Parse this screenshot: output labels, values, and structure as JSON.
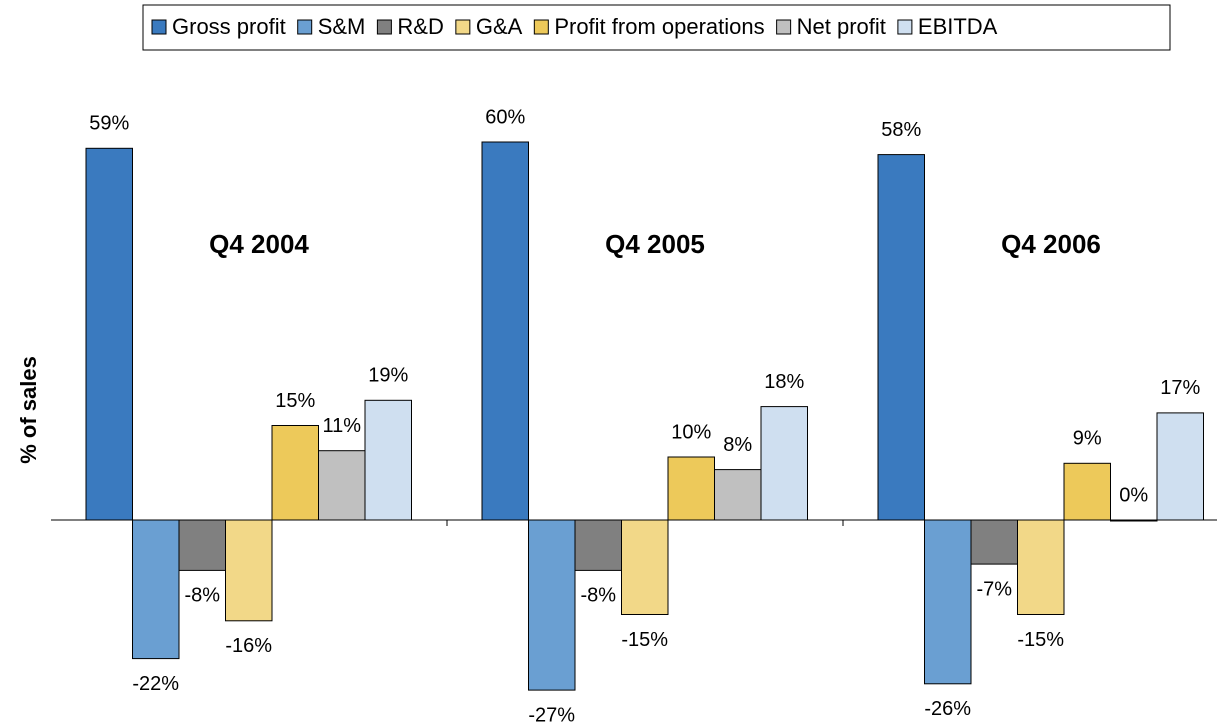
{
  "chart_data": {
    "type": "bar",
    "categories": [
      "Q4 2004",
      "Q4 2005",
      "Q4 2006"
    ],
    "y_label": "% of sales",
    "ylim": [
      -30,
      65
    ],
    "legend": "top",
    "series": [
      {
        "name": "Gross profit",
        "color": "#3a7abf",
        "values": [
          59,
          60,
          58
        ],
        "value_labels": [
          "59%",
          "60%",
          "58%"
        ]
      },
      {
        "name": "S&M",
        "color": "#6a9fd2",
        "values": [
          -22,
          -27,
          -26
        ],
        "value_labels": [
          "-22%",
          "-27%",
          "-26%"
        ]
      },
      {
        "name": "R&D",
        "color": "#808080",
        "values": [
          -8,
          -8,
          -7
        ],
        "value_labels": [
          "-8%",
          "-8%",
          "-7%"
        ]
      },
      {
        "name": "G&A",
        "color": "#f2d888",
        "values": [
          -16,
          -15,
          -15
        ],
        "value_labels": [
          "-16%",
          "-15%",
          "-15%"
        ]
      },
      {
        "name": "Profit from operations",
        "color": "#edc95a",
        "values": [
          15,
          10,
          9
        ],
        "value_labels": [
          "15%",
          "10%",
          "9%"
        ]
      },
      {
        "name": "Net profit",
        "color": "#c0c0c0",
        "values": [
          11,
          8,
          0
        ],
        "value_labels": [
          "11%",
          "8%",
          "0%"
        ]
      },
      {
        "name": "EBITDA",
        "color": "#cfdff0",
        "values": [
          19,
          18,
          17
        ],
        "value_labels": [
          "19%",
          "18%",
          "17%"
        ]
      }
    ]
  }
}
